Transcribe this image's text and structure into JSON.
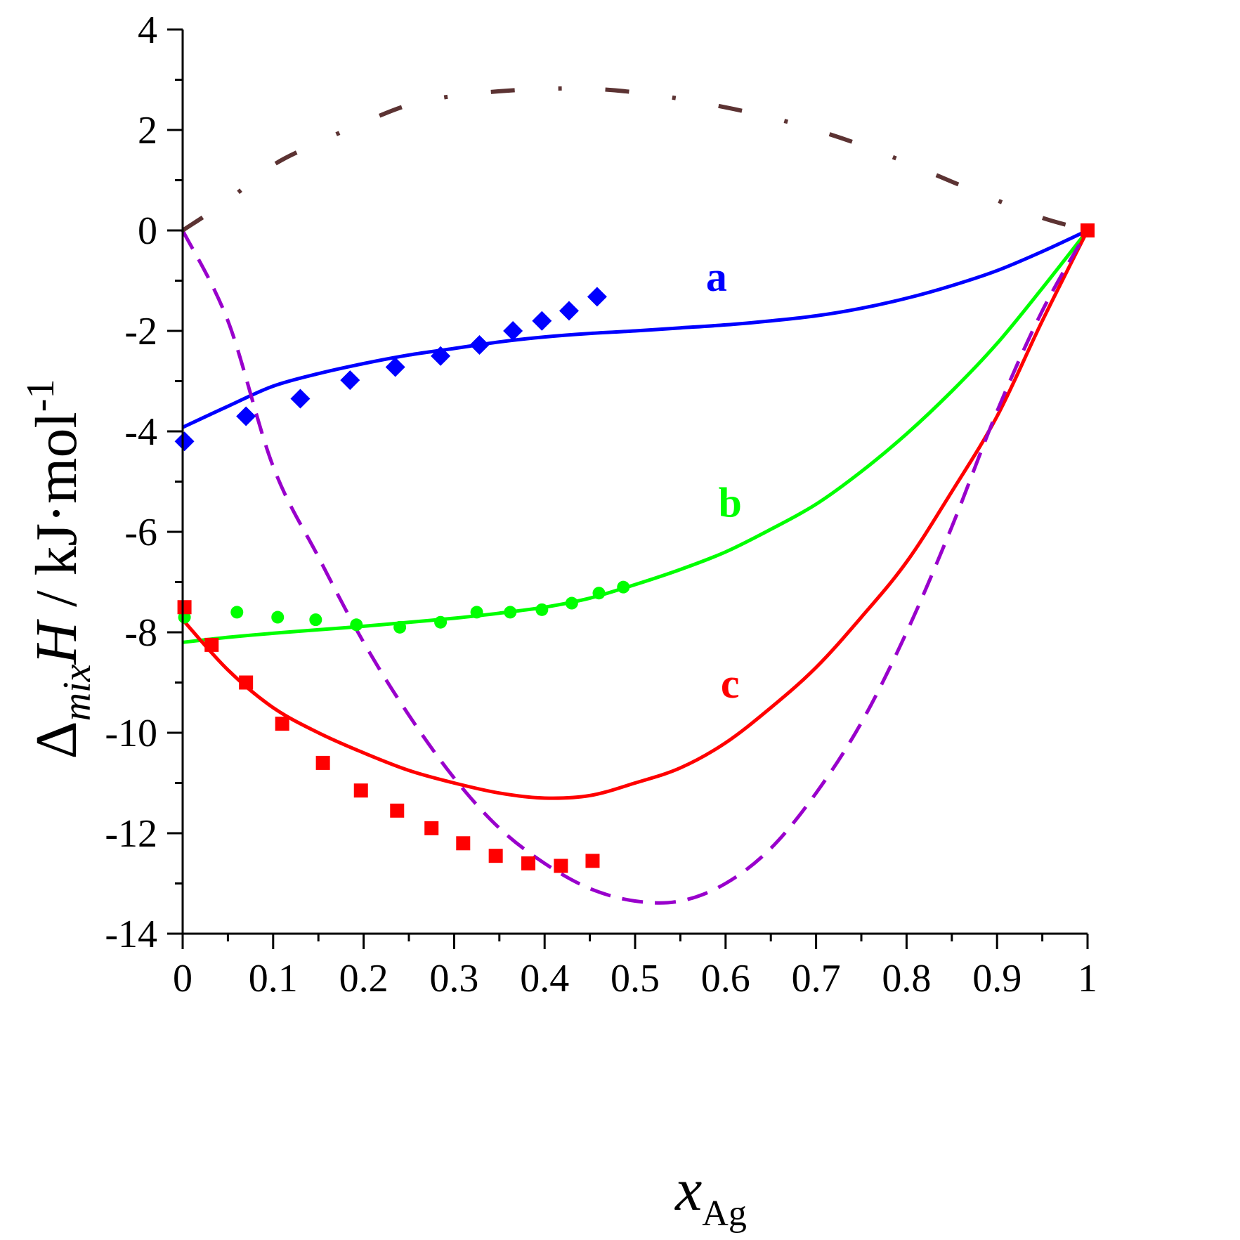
{
  "chart_data": {
    "type": "line",
    "title": "",
    "xlabel": {
      "main": "x",
      "sub": "Ag"
    },
    "ylabel": {
      "delta": "Δ",
      "sub": "mix",
      "main": "H",
      "unit": " / kJ·mol",
      "sup": "-1"
    },
    "xlim": [
      0,
      1
    ],
    "ylim": [
      -14,
      4
    ],
    "x_ticks": [
      0,
      0.1,
      0.2,
      0.3,
      0.4,
      0.5,
      0.6,
      0.7,
      0.8,
      0.9,
      1
    ],
    "x_tick_labels": [
      "0",
      "0.1",
      "0.2",
      "0.3",
      "0.4",
      "0.5",
      "0.6",
      "0.7",
      "0.8",
      "0.9",
      "1"
    ],
    "y_ticks": [
      4,
      2,
      0,
      -2,
      -4,
      -6,
      -8,
      -10,
      -12,
      -14
    ],
    "y_tick_labels": [
      "4",
      "2",
      "0",
      "-2",
      "-4",
      "-6",
      "-8",
      "-10",
      "-12",
      "-14"
    ],
    "grid": false,
    "series": [
      {
        "name": "a",
        "label": "a",
        "color": "#0000ff",
        "style": "solid",
        "label_pos": [
          0.59,
          -1.2
        ],
        "x": [
          0,
          0.05,
          0.1,
          0.15,
          0.2,
          0.25,
          0.3,
          0.35,
          0.4,
          0.45,
          0.5,
          0.55,
          0.6,
          0.65,
          0.7,
          0.75,
          0.8,
          0.85,
          0.9,
          0.95,
          1
        ],
        "y": [
          -3.92,
          -3.5,
          -3.1,
          -2.85,
          -2.65,
          -2.48,
          -2.35,
          -2.22,
          -2.12,
          -2.05,
          -2.0,
          -1.94,
          -1.88,
          -1.8,
          -1.7,
          -1.55,
          -1.35,
          -1.1,
          -0.8,
          -0.42,
          0
        ]
      },
      {
        "name": "b",
        "label": "b",
        "color": "#00ff00",
        "style": "solid",
        "label_pos": [
          0.605,
          -5.7
        ],
        "x": [
          0,
          0.05,
          0.1,
          0.15,
          0.2,
          0.25,
          0.3,
          0.35,
          0.4,
          0.45,
          0.5,
          0.55,
          0.6,
          0.65,
          0.7,
          0.75,
          0.8,
          0.85,
          0.9,
          0.95,
          1
        ],
        "y": [
          -8.2,
          -8.1,
          -8.02,
          -7.95,
          -7.88,
          -7.8,
          -7.72,
          -7.62,
          -7.5,
          -7.32,
          -7.05,
          -6.75,
          -6.4,
          -5.95,
          -5.45,
          -4.8,
          -4.05,
          -3.2,
          -2.25,
          -1.15,
          0
        ]
      },
      {
        "name": "c",
        "label": "c",
        "color": "#ff0000",
        "style": "solid",
        "label_pos": [
          0.605,
          -9.3
        ],
        "x": [
          0,
          0.05,
          0.1,
          0.15,
          0.2,
          0.25,
          0.3,
          0.35,
          0.4,
          0.45,
          0.5,
          0.55,
          0.6,
          0.65,
          0.7,
          0.75,
          0.8,
          0.85,
          0.9,
          0.95,
          1
        ],
        "y": [
          -7.75,
          -8.75,
          -9.5,
          -10.0,
          -10.4,
          -10.75,
          -11.0,
          -11.2,
          -11.3,
          -11.25,
          -11.0,
          -10.7,
          -10.2,
          -9.5,
          -8.7,
          -7.7,
          -6.6,
          -5.2,
          -3.7,
          -1.8,
          0
        ]
      },
      {
        "name": "dashed",
        "color": "#9900cc",
        "style": "dashed",
        "x": [
          0,
          0.05,
          0.1,
          0.15,
          0.2,
          0.25,
          0.3,
          0.35,
          0.4,
          0.45,
          0.5,
          0.55,
          0.6,
          0.65,
          0.7,
          0.75,
          0.8,
          0.85,
          0.9,
          0.95,
          1
        ],
        "y": [
          0,
          -1.8,
          -4.7,
          -6.5,
          -8.2,
          -9.65,
          -10.9,
          -11.9,
          -12.6,
          -13.1,
          -13.35,
          -13.35,
          -13.0,
          -12.3,
          -11.2,
          -9.8,
          -8.0,
          -5.9,
          -3.6,
          -1.6,
          0
        ]
      },
      {
        "name": "dash-dot",
        "color": "#5c3333",
        "style": "dashdot",
        "x": [
          0,
          0.05,
          0.1,
          0.15,
          0.2,
          0.25,
          0.3,
          0.35,
          0.4,
          0.45,
          0.5,
          0.55,
          0.6,
          0.65,
          0.7,
          0.75,
          0.8,
          0.85,
          0.9,
          0.95,
          1
        ],
        "y": [
          0,
          0.6,
          1.3,
          1.75,
          2.15,
          2.5,
          2.68,
          2.77,
          2.82,
          2.82,
          2.75,
          2.62,
          2.45,
          2.25,
          2.0,
          1.7,
          1.35,
          0.97,
          0.6,
          0.25,
          0
        ]
      }
    ],
    "scatter": [
      {
        "name": "a-data",
        "marker": "diamond",
        "color": "#0000ff",
        "x": [
          0.002,
          0.07,
          0.13,
          0.185,
          0.235,
          0.285,
          0.328,
          0.365,
          0.397,
          0.427,
          0.458
        ],
        "y": [
          -4.2,
          -3.7,
          -3.35,
          -2.98,
          -2.72,
          -2.5,
          -2.28,
          -2.0,
          -1.8,
          -1.6,
          -1.32
        ]
      },
      {
        "name": "b-data",
        "marker": "circle",
        "color": "#00ff00",
        "x": [
          0.002,
          0.06,
          0.105,
          0.147,
          0.192,
          0.24,
          0.285,
          0.325,
          0.362,
          0.397,
          0.43,
          0.46,
          0.487
        ],
        "y": [
          -7.7,
          -7.6,
          -7.7,
          -7.75,
          -7.85,
          -7.9,
          -7.8,
          -7.6,
          -7.6,
          -7.55,
          -7.42,
          -7.22,
          -7.1
        ]
      },
      {
        "name": "c-data",
        "marker": "square",
        "color": "#ff0000",
        "x": [
          0.002,
          0.032,
          0.07,
          0.11,
          0.155,
          0.197,
          0.237,
          0.275,
          0.31,
          0.346,
          0.382,
          0.418,
          0.453,
          1.0
        ],
        "y": [
          -7.5,
          -8.25,
          -9.0,
          -9.82,
          -10.6,
          -11.15,
          -11.55,
          -11.9,
          -12.2,
          -12.45,
          -12.6,
          -12.65,
          -12.55,
          0
        ]
      }
    ]
  }
}
